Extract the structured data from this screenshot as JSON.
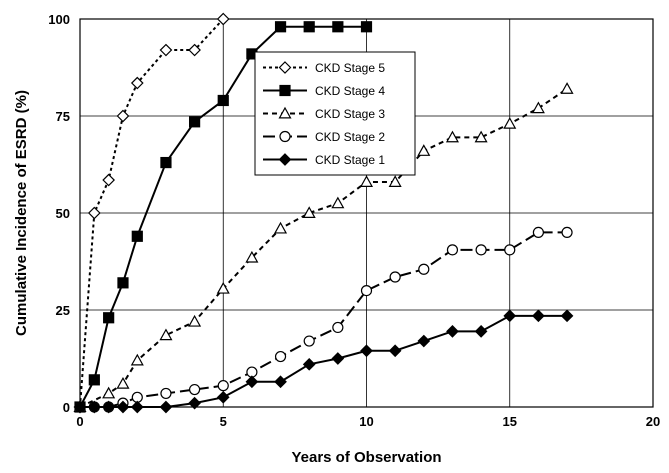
{
  "chart_data": {
    "type": "line",
    "title": "",
    "xlabel": "Years of Observation",
    "ylabel": "Cumulative Incidence of ESRD (%)",
    "xlim": [
      0,
      20
    ],
    "ylim": [
      0,
      100
    ],
    "xticks": [
      "0",
      "5",
      "10",
      "15",
      "20"
    ],
    "yticks": [
      "0",
      "25",
      "50",
      "75",
      "100"
    ],
    "grid": true,
    "legend_position": "top-center",
    "series": [
      {
        "name": "CKD Stage 5",
        "marker": "diamond-open",
        "line": "dotted",
        "x": [
          0,
          0.5,
          1,
          1.5,
          2,
          3,
          4,
          5
        ],
        "y": [
          0,
          50,
          58.5,
          75,
          83.5,
          92,
          92,
          100
        ]
      },
      {
        "name": "CKD Stage 4",
        "marker": "square-filled",
        "line": "solid",
        "x": [
          0,
          0.5,
          1,
          1.5,
          2,
          3,
          4,
          5,
          6,
          7,
          8,
          9,
          10
        ],
        "y": [
          0,
          7,
          23,
          32,
          44,
          63,
          73.5,
          79,
          91,
          98,
          98,
          98,
          98
        ]
      },
      {
        "name": "CKD Stage 3",
        "marker": "triangle-open",
        "line": "dashed",
        "x": [
          0,
          1,
          1.5,
          2,
          3,
          4,
          5,
          6,
          7,
          8,
          9,
          10,
          11,
          12,
          13,
          14,
          15,
          16,
          17
        ],
        "y": [
          0,
          3.5,
          6,
          12,
          18.5,
          22,
          30.5,
          38.5,
          46,
          50,
          52.5,
          58,
          58,
          66,
          69.5,
          69.5,
          73,
          77,
          82
        ]
      },
      {
        "name": "CKD Stage 2",
        "marker": "circle-open",
        "line": "longdash",
        "x": [
          0,
          0.5,
          1,
          1.5,
          2,
          3,
          4,
          5,
          6,
          7,
          8,
          9,
          10,
          11,
          12,
          13,
          14,
          15,
          16,
          17
        ],
        "y": [
          0,
          0,
          0,
          1,
          2.5,
          3.5,
          4.5,
          5.5,
          9,
          13,
          17,
          20.5,
          30,
          33.5,
          35.5,
          40.5,
          40.5,
          40.5,
          45,
          45
        ]
      },
      {
        "name": "CKD Stage 1",
        "marker": "diamond-filled",
        "line": "solid",
        "x": [
          0,
          0.5,
          1,
          1.5,
          2,
          3,
          4,
          5,
          6,
          7,
          8,
          9,
          10,
          11,
          12,
          13,
          14,
          15,
          16,
          17
        ],
        "y": [
          0,
          0,
          0,
          0,
          0,
          0,
          1,
          2.5,
          6.5,
          6.5,
          11,
          12.5,
          14.5,
          14.5,
          17,
          19.5,
          19.5,
          23.5,
          23.5,
          23.5
        ]
      }
    ]
  }
}
